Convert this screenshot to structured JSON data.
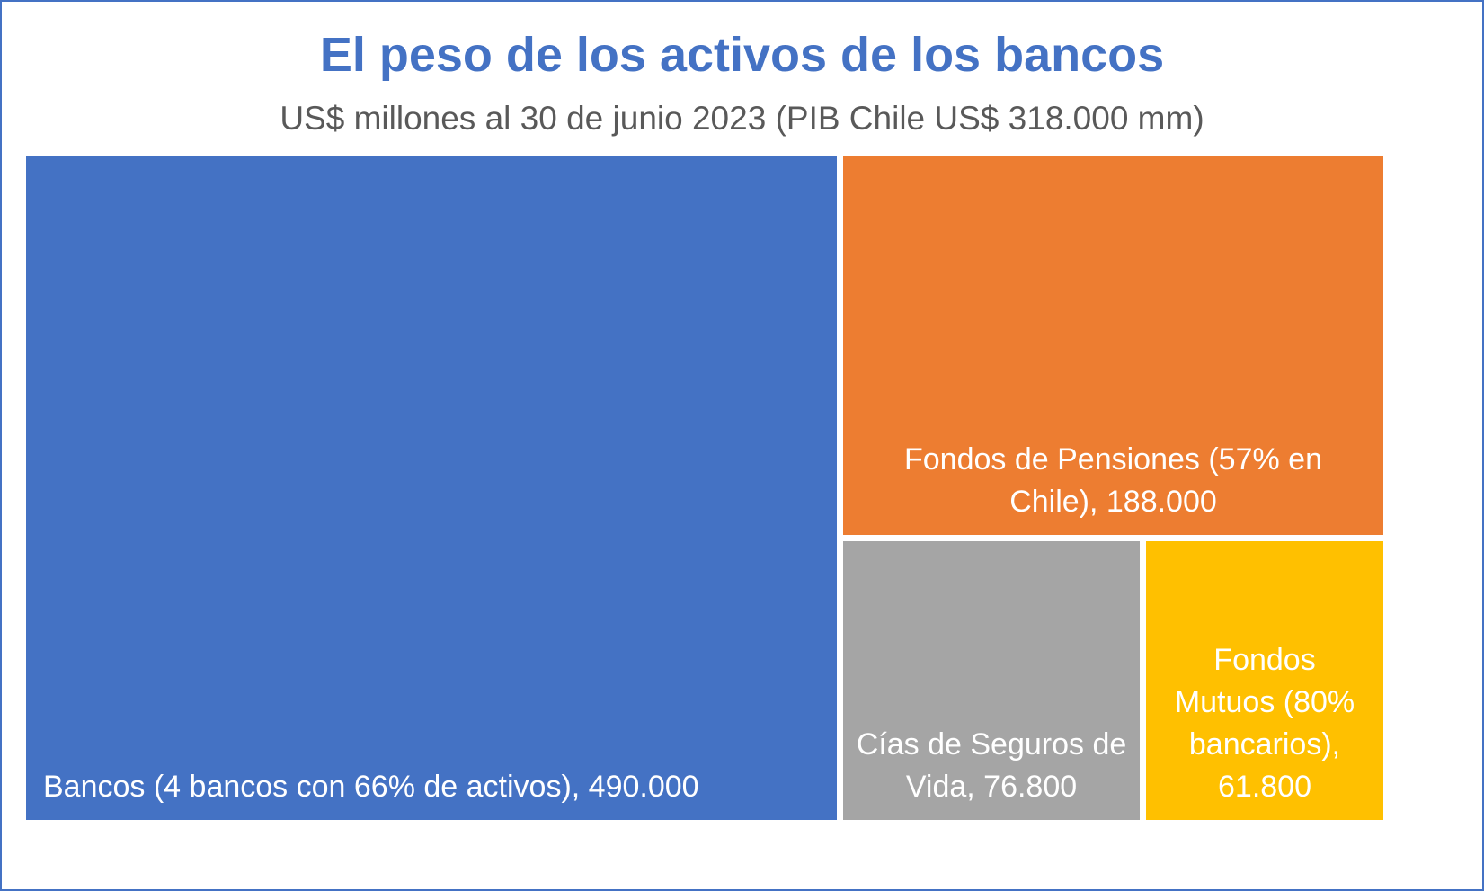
{
  "title": "El peso de los activos de los bancos",
  "subtitle": "US$ millones al 30 de junio 2023 (PIB Chile US$ 318.000 mm)",
  "chart_data": {
    "type": "treemap",
    "title": "El peso de los activos de los bancos",
    "subtitle": "US$ millones al 30 de junio 2023 (PIB Chile US$ 318.000 mm)",
    "items": [
      {
        "label": "Bancos (4 bancos con 66% de activos),  490.000",
        "lines": [
          "Bancos (4 bancos con 66% de activos),  490.000"
        ],
        "value": 490000,
        "color": "#4472c4"
      },
      {
        "label": "Fondos de Pensiones (57% en Chile),  188.000",
        "lines": [
          "Fondos de Pensiones (57% en",
          "Chile),  188.000"
        ],
        "value": 188000,
        "color": "#ed7d31"
      },
      {
        "label": "Cías de Seguros de Vida,  76.800",
        "lines": [
          "Cías de Seguros de",
          "Vida,  76.800"
        ],
        "value": 76800,
        "color": "#a5a5a5"
      },
      {
        "label": "Fondos Mutuos (80% bancarios), 61.800",
        "lines": [
          "Fondos",
          "Mutuos (80%",
          "bancarios),",
          "61.800"
        ],
        "value": 61800,
        "color": "#ffc000"
      }
    ]
  }
}
